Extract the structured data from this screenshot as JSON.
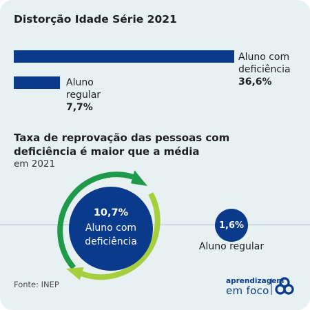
{
  "section1": {
    "title": "Distorção Idade Série 2021"
  },
  "section2": {
    "title": "Taxa de reprovação das pessoas com deficiência é maior que a média",
    "subtitle": "em 2021"
  },
  "source": "Fonte: INEP",
  "logo": {
    "line1": "aprendizagem",
    "line2": "em foco"
  },
  "colors": {
    "navy": "#0a3a8c",
    "green_dark": "#1e9a4a",
    "green_light": "#a5cf3c",
    "background": "#e7f1f2"
  },
  "chart_data": [
    {
      "type": "bar",
      "title": "Distorção Idade Série 2021",
      "categories": [
        "Aluno com deficiência",
        "Aluno regular"
      ],
      "values": [
        36.6,
        7.7
      ],
      "value_labels": [
        "36,6%",
        "7,7%"
      ],
      "labels_lines": [
        [
          "Aluno com",
          "deficiência"
        ],
        [
          "Aluno",
          "regular"
        ]
      ],
      "orientation": "horizontal"
    },
    {
      "type": "bubble",
      "title": "Taxa de reprovação das pessoas com deficiência é maior que a média",
      "subtitle": "em 2021",
      "categories": [
        "Aluno com deficiência",
        "Aluno regular"
      ],
      "values": [
        10.7,
        1.6
      ],
      "value_labels": [
        "10,7%",
        "1,6%"
      ],
      "labels_lines": [
        [
          "Aluno com",
          "deficiência"
        ],
        [
          "Aluno regular"
        ]
      ]
    }
  ]
}
